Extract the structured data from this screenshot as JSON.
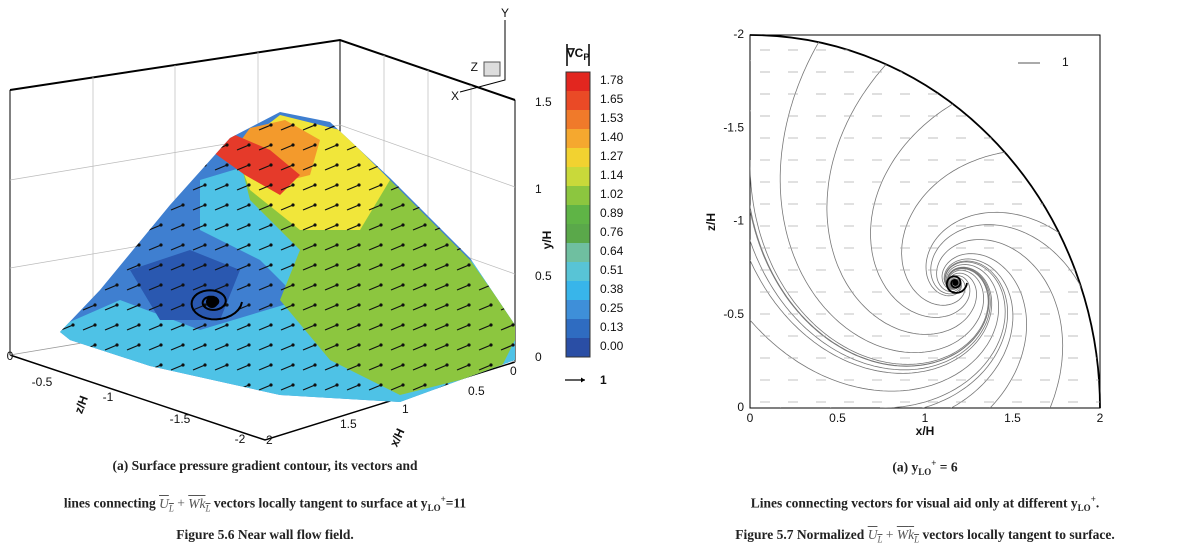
{
  "figure_left": {
    "plot": {
      "triad": {
        "y": "Y",
        "z": "Z",
        "x": "X"
      },
      "y_axis": {
        "label": "y/H",
        "ticks": [
          "1.5",
          "1",
          "0.5",
          "0"
        ]
      },
      "x_axis": {
        "label": "x/H",
        "ticks": [
          "0",
          "0.5",
          "1",
          "1.5",
          "2"
        ]
      },
      "z_axis": {
        "label": "z/H",
        "ticks": [
          "0",
          "-0.5",
          "-1",
          "-1.5",
          "-2"
        ]
      },
      "colorbar": {
        "title_symbol": "∇",
        "title_var": "C",
        "title_sub": "P",
        "levels": [
          "1.78",
          "1.65",
          "1.53",
          "1.40",
          "1.27",
          "1.14",
          "1.02",
          "0.89",
          "0.76",
          "0.64",
          "0.51",
          "0.38",
          "0.25",
          "0.13",
          "0.00"
        ],
        "vector_legend": "1"
      }
    },
    "caption": {
      "line1": "(a) Surface pressure gradient contour, its vectors and",
      "line2_start": "lines connecting",
      "vec_u": "U",
      "vec_u_sub": "L",
      "plus": "+",
      "vec_w": "W",
      "vec_k": "k",
      "vec_k_sub": "L",
      "line2_end": "vectors locally tangent to surface at y",
      "y_sub": "LO",
      "y_sup": "+",
      "y_value": "=11",
      "figure": "Figure 5.6 Near wall flow field."
    }
  },
  "figure_right": {
    "plot": {
      "x_axis": {
        "label": "x/H",
        "ticks": [
          "0",
          "0.5",
          "1",
          "1.5",
          "2"
        ]
      },
      "y_axis": {
        "label": "z/H",
        "ticks": [
          "-2",
          "-1.5",
          "-1",
          "-0.5",
          "0"
        ]
      },
      "vector_legend": "1"
    },
    "caption": {
      "sub_start": "(a) y",
      "sub_sub": "LO",
      "sub_sup": "+",
      "sub_end": "= 6",
      "line2": "Lines connecting vectors for visual aid only at different y",
      "line2_sub": "LO",
      "line2_sup": "+",
      "line2_end": ".",
      "figure_start": "Figure 5.7 Normalized",
      "vec_u": "U",
      "vec_u_sub": "L",
      "plus": "+",
      "vec_w": "W",
      "vec_k": "k",
      "vec_k_sub": "L",
      "figure_end": "vectors locally tangent to surface."
    }
  }
}
